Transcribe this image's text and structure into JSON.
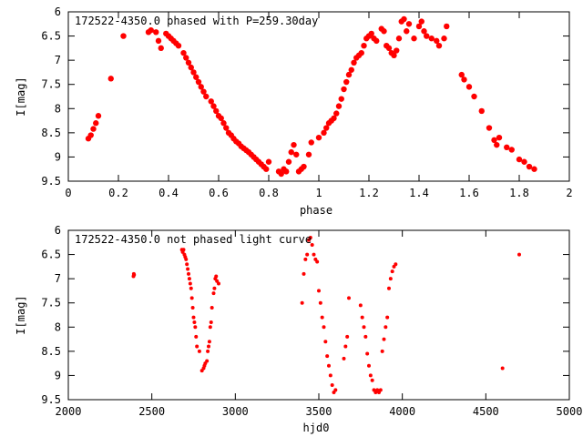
{
  "chart_data": [
    {
      "type": "scatter",
      "title": "172522-4350.0 phased with P=259.30day",
      "xlabel": "phase",
      "ylabel": "I[mag]",
      "xlim": [
        0,
        2
      ],
      "ylim": [
        9.5,
        6
      ],
      "y_inverted": true,
      "xticks": [
        "0",
        "0.2",
        "0.4",
        "0.6",
        "0.8",
        "1",
        "1.2",
        "1.4",
        "1.6",
        "1.8",
        "2"
      ],
      "yticks": [
        "6",
        "6.5",
        "7",
        "7.5",
        "8",
        "8.5",
        "9",
        "9.5"
      ],
      "grid": false,
      "marker_color": "#ff0000",
      "series": [
        {
          "x": [
            0.08,
            0.09,
            0.1,
            0.11,
            0.12,
            0.17,
            0.22,
            0.32,
            0.33,
            0.35,
            0.36,
            0.37,
            0.39,
            0.4,
            0.41,
            0.42,
            0.43,
            0.44,
            0.46,
            0.47,
            0.48,
            0.49,
            0.5,
            0.51,
            0.52,
            0.53,
            0.54,
            0.55,
            0.57,
            0.58,
            0.59,
            0.6,
            0.61,
            0.62,
            0.63,
            0.64,
            0.65,
            0.66,
            0.67,
            0.68,
            0.69,
            0.7,
            0.71,
            0.72,
            0.73,
            0.74,
            0.75,
            0.76,
            0.77,
            0.78,
            0.79,
            0.8,
            0.84,
            0.85,
            0.86,
            0.87,
            0.88,
            0.89,
            0.9,
            0.91,
            0.92,
            0.93,
            0.94,
            0.96,
            0.97,
            1.0,
            1.02,
            1.03,
            1.04,
            1.05,
            1.06,
            1.07,
            1.08,
            1.09,
            1.1,
            1.11,
            1.12,
            1.13,
            1.14,
            1.15,
            1.16,
            1.17,
            1.18,
            1.19,
            1.2,
            1.21,
            1.22,
            1.23,
            1.25,
            1.26,
            1.27,
            1.28,
            1.29,
            1.3,
            1.31,
            1.32,
            1.33,
            1.34,
            1.35,
            1.36,
            1.38,
            1.4,
            1.41,
            1.42,
            1.43,
            1.45,
            1.47,
            1.48,
            1.5,
            1.51,
            1.57,
            1.58,
            1.6,
            1.62,
            1.65,
            1.68,
            1.7,
            1.71,
            1.72,
            1.75,
            1.77,
            1.8,
            1.82,
            1.84,
            1.86
          ],
          "y": [
            8.62,
            8.55,
            8.42,
            8.3,
            8.15,
            7.38,
            6.5,
            6.42,
            6.38,
            6.42,
            6.6,
            6.75,
            6.45,
            6.5,
            6.55,
            6.6,
            6.65,
            6.7,
            6.85,
            6.95,
            7.05,
            7.15,
            7.25,
            7.35,
            7.45,
            7.55,
            7.65,
            7.75,
            7.85,
            7.95,
            8.05,
            8.15,
            8.2,
            8.3,
            8.4,
            8.5,
            8.55,
            8.62,
            8.68,
            8.72,
            8.78,
            8.82,
            8.86,
            8.9,
            8.95,
            9.0,
            9.05,
            9.1,
            9.15,
            9.2,
            9.25,
            9.1,
            9.3,
            9.35,
            9.25,
            9.3,
            9.1,
            8.9,
            8.75,
            8.95,
            9.3,
            9.25,
            9.2,
            8.95,
            8.7,
            8.6,
            8.5,
            8.4,
            8.3,
            8.25,
            8.2,
            8.1,
            7.95,
            7.8,
            7.6,
            7.45,
            7.3,
            7.2,
            7.05,
            6.95,
            6.9,
            6.85,
            6.7,
            6.55,
            6.5,
            6.45,
            6.55,
            6.6,
            6.35,
            6.4,
            6.7,
            6.75,
            6.85,
            6.9,
            6.8,
            6.55,
            6.2,
            6.15,
            6.4,
            6.25,
            6.55,
            6.3,
            6.2,
            6.4,
            6.5,
            6.55,
            6.6,
            6.7,
            6.55,
            6.3,
            7.3,
            7.4,
            7.55,
            7.75,
            8.05,
            8.4,
            8.65,
            8.75,
            8.6,
            8.8,
            8.85,
            9.05,
            9.1,
            9.2,
            9.25
          ]
        }
      ]
    },
    {
      "type": "scatter",
      "title": "172522-4350.0 not phased light curve",
      "xlabel": "hjd0",
      "ylabel": "I[mag]",
      "xlim": [
        2000,
        5000
      ],
      "ylim": [
        9.5,
        6
      ],
      "y_inverted": true,
      "xticks": [
        "2000",
        "2500",
        "3000",
        "3500",
        "4000",
        "4500",
        "5000"
      ],
      "yticks": [
        "6",
        "6.5",
        "7",
        "7.5",
        "8",
        "8.5",
        "9",
        "9.5"
      ],
      "grid": false,
      "marker_color": "#ff0000",
      "series": [
        {
          "x": [
            2390,
            2392,
            2394,
            2680,
            2685,
            2690,
            2695,
            2700,
            2705,
            2710,
            2715,
            2720,
            2725,
            2730,
            2735,
            2740,
            2745,
            2750,
            2755,
            2760,
            2765,
            2770,
            2785,
            2800,
            2810,
            2815,
            2820,
            2830,
            2835,
            2840,
            2845,
            2850,
            2855,
            2860,
            2870,
            2875,
            2880,
            2885,
            2890,
            2900,
            3400,
            3410,
            3420,
            3430,
            3440,
            3450,
            3460,
            3470,
            3480,
            3490,
            3500,
            3510,
            3520,
            3530,
            3540,
            3550,
            3560,
            3570,
            3580,
            3590,
            3600,
            3650,
            3660,
            3670,
            3680,
            3750,
            3760,
            3770,
            3780,
            3790,
            3800,
            3810,
            3820,
            3830,
            3840,
            3850,
            3860,
            3870,
            3880,
            3890,
            3900,
            3910,
            3920,
            3930,
            3940,
            3950,
            3960,
            4600,
            4700
          ],
          "y": [
            6.95,
            6.9,
            6.92,
            6.4,
            6.45,
            6.4,
            6.5,
            6.55,
            6.6,
            6.7,
            6.8,
            6.9,
            7.0,
            7.1,
            7.2,
            7.4,
            7.6,
            7.8,
            7.9,
            8.0,
            8.2,
            8.4,
            8.5,
            8.9,
            8.85,
            8.8,
            8.75,
            8.7,
            8.5,
            8.4,
            8.3,
            8.0,
            7.9,
            7.6,
            7.3,
            7.2,
            7.0,
            6.95,
            7.05,
            7.1,
            7.5,
            6.9,
            6.6,
            6.5,
            6.2,
            6.15,
            6.3,
            6.5,
            6.6,
            6.65,
            7.25,
            7.5,
            7.8,
            8.0,
            8.3,
            8.6,
            8.8,
            9.0,
            9.2,
            9.35,
            9.3,
            8.65,
            8.4,
            8.2,
            7.4,
            7.55,
            7.8,
            8.0,
            8.2,
            8.55,
            8.8,
            9.0,
            9.1,
            9.3,
            9.35,
            9.3,
            9.35,
            9.3,
            8.5,
            8.25,
            8.0,
            7.8,
            7.2,
            7.0,
            6.85,
            6.75,
            6.7,
            8.85,
            6.5
          ]
        }
      ]
    }
  ]
}
